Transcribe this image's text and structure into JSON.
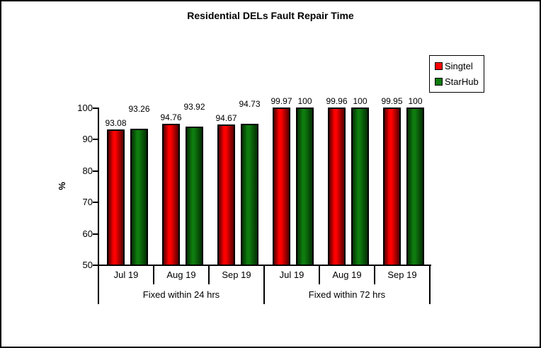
{
  "page": {
    "background": "#ffffff",
    "border_color": "#000000"
  },
  "chart_data": {
    "type": "bar",
    "title": "Residential DELs Fault Repair Time",
    "ylabel": "%",
    "ylim": [
      50,
      100
    ],
    "yticks": [
      100,
      90,
      80,
      70,
      60,
      50
    ],
    "grid": false,
    "legend_position": "top-right",
    "x_axis": {
      "groups": [
        {
          "label": "Fixed within 24 hrs",
          "categories": [
            "Jul 19",
            "Aug 19",
            "Sep 19"
          ]
        },
        {
          "label": "Fixed within 72 hrs",
          "categories": [
            "Jul 19",
            "Aug 19",
            "Sep 19"
          ]
        }
      ]
    },
    "series": [
      {
        "name": "Singtel",
        "color": "#ff0000",
        "color_dark": "#570000",
        "values": [
          93.08,
          94.76,
          94.67,
          99.97,
          99.96,
          99.95
        ],
        "labels": [
          "93.08",
          "94.76",
          "94.67",
          "99.97",
          "99.96",
          "99.95"
        ],
        "raised_label_cells": []
      },
      {
        "name": "StarHub",
        "color": "#0e7c0e",
        "color_dark": "#043004",
        "values": [
          93.26,
          93.92,
          94.73,
          100,
          100,
          100
        ],
        "labels": [
          "93.26",
          "93.92",
          "94.73",
          "100",
          "100",
          "100"
        ],
        "raised_label_cells": [
          0,
          1,
          2
        ]
      }
    ]
  }
}
